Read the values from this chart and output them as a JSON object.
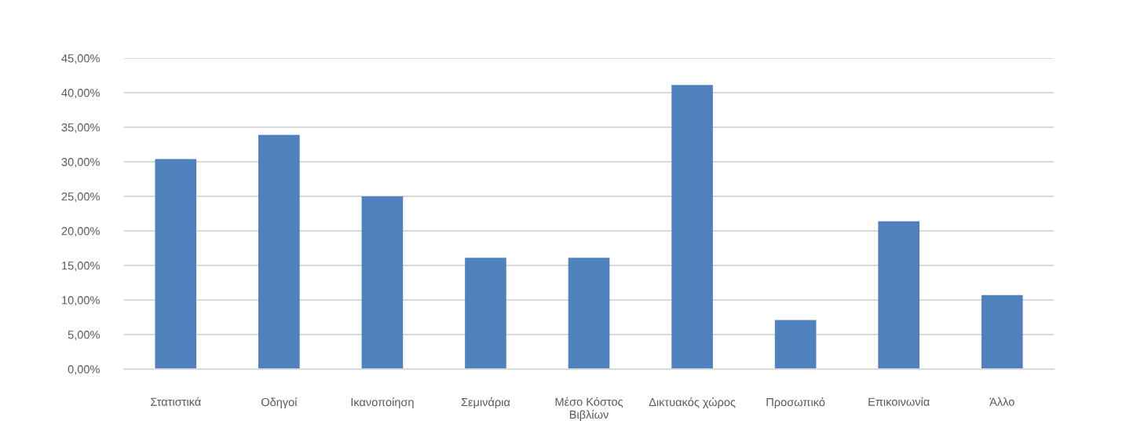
{
  "chart_data": {
    "type": "bar",
    "categories": [
      "Στατιστικά",
      "Οδηγοί",
      "Ικανοποίηση",
      "Σεμινάρια",
      "Μέσο Κόστος Βιβλίων",
      "Δικτυακός χώρος",
      "Προσωπικό",
      "Επικοινωνία",
      "Άλλο"
    ],
    "values": [
      30.4,
      33.9,
      25.0,
      16.1,
      16.1,
      41.1,
      7.1,
      21.4,
      10.7
    ],
    "color": "#4f81bd",
    "ylim": [
      0,
      45
    ],
    "yticks": [
      {
        "value": 0,
        "label": "0,00%"
      },
      {
        "value": 5,
        "label": "5,00%"
      },
      {
        "value": 10,
        "label": "10,00%"
      },
      {
        "value": 15,
        "label": "15,00%"
      },
      {
        "value": 20,
        "label": "20,00%"
      },
      {
        "value": 25,
        "label": "25,00%"
      },
      {
        "value": 30,
        "label": "30,00%"
      },
      {
        "value": 35,
        "label": "35,00%"
      },
      {
        "value": 40,
        "label": "40,00%"
      },
      {
        "value": 45,
        "label": "45,00%"
      }
    ],
    "grid": "y"
  }
}
